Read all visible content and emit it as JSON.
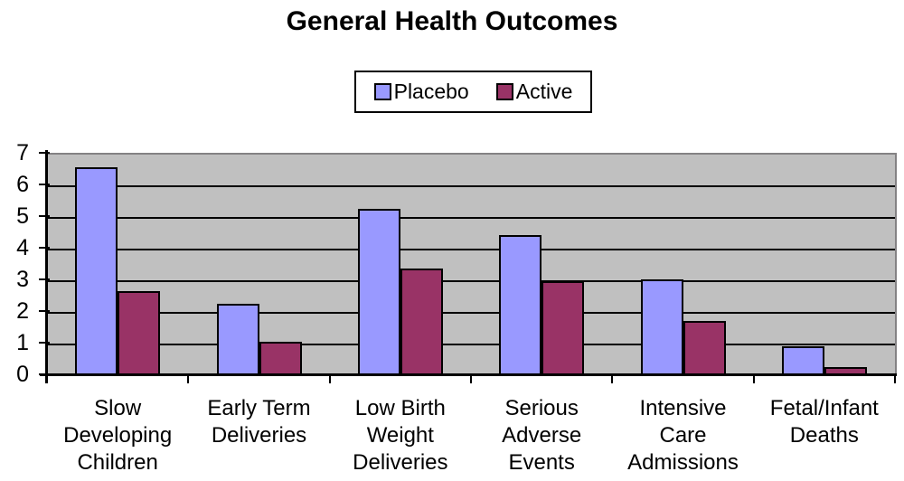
{
  "page": {
    "background": "#ffffff"
  },
  "title": "General Health Outcomes",
  "legend": {
    "items": [
      {
        "label": "Placebo",
        "color": "#9999ff"
      },
      {
        "label": "Active",
        "color": "#993366"
      }
    ]
  },
  "chart_data": {
    "type": "bar",
    "title": "General Health Outcomes",
    "categories": [
      "Slow Developing Children",
      "Early Term Deliveries",
      "Low Birth Weight Deliveries",
      "Serious Adverse Events",
      "Intensive Care Admissions",
      "Fetal/Infant Deaths"
    ],
    "categories_display": [
      "Slow\nDeveloping\nChildren",
      "Early Term\nDeliveries",
      "Low Birth\nWeight\nDeliveries",
      "Serious\nAdverse\nEvents",
      "Intensive\nCare\nAdmissions",
      "Fetal/Infant\nDeaths"
    ],
    "series": [
      {
        "name": "Placebo",
        "color": "#9999ff",
        "values": [
          6.6,
          2.3,
          5.3,
          4.45,
          3.05,
          0.95
        ]
      },
      {
        "name": "Active",
        "color": "#993366",
        "values": [
          2.7,
          1.1,
          3.4,
          3.0,
          1.75,
          0.3
        ]
      }
    ],
    "xlabel": "",
    "ylabel": "",
    "ylim": [
      0,
      7
    ],
    "yticks": [
      0,
      1,
      2,
      3,
      4,
      5,
      6,
      7
    ],
    "grid": true,
    "legend_position": "top-center",
    "plot_background": "#c0c0c0",
    "plot_border_color": "#848284",
    "gridline_color": "#000000"
  }
}
